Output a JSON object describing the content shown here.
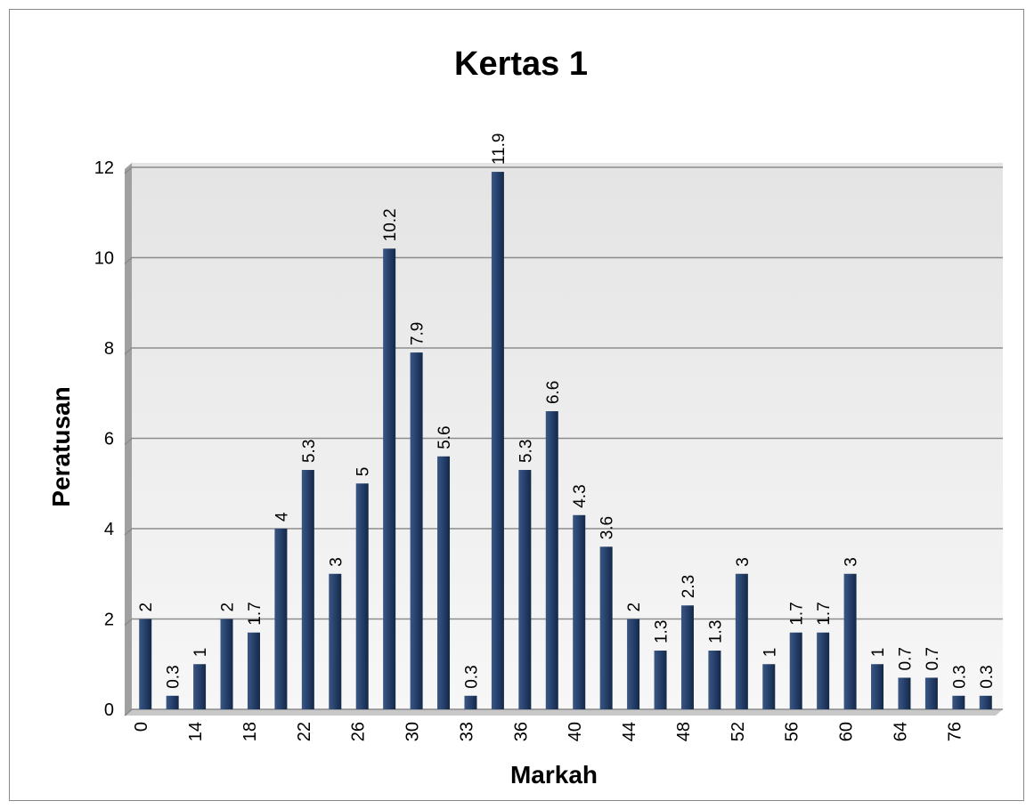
{
  "chart_data": {
    "type": "bar",
    "title": "Kertas 1",
    "x_label": "Markah",
    "y_label": "Peratusan",
    "categories": [
      "0",
      null,
      "14",
      null,
      "18",
      null,
      "22",
      null,
      "26",
      null,
      "30",
      null,
      "33",
      null,
      "36",
      null,
      "40",
      null,
      "44",
      null,
      "48",
      null,
      "52",
      null,
      "56",
      null,
      "60",
      null,
      "64",
      null,
      "76",
      null
    ],
    "values": [
      2,
      0.3,
      1,
      2,
      1.7,
      4,
      5.3,
      3,
      5,
      10.2,
      7.9,
      5.6,
      0.3,
      11.9,
      5.3,
      6.6,
      4.3,
      3.6,
      2,
      1.3,
      2.3,
      1.3,
      3,
      1,
      1.7,
      1.7,
      3,
      1,
      0.7,
      0.7,
      0.3,
      0.3
    ],
    "color": "#1f3864",
    "ylim": [
      0,
      12
    ],
    "yticks": [
      0,
      2,
      4,
      6,
      8,
      10,
      12
    ],
    "grid": true
  }
}
